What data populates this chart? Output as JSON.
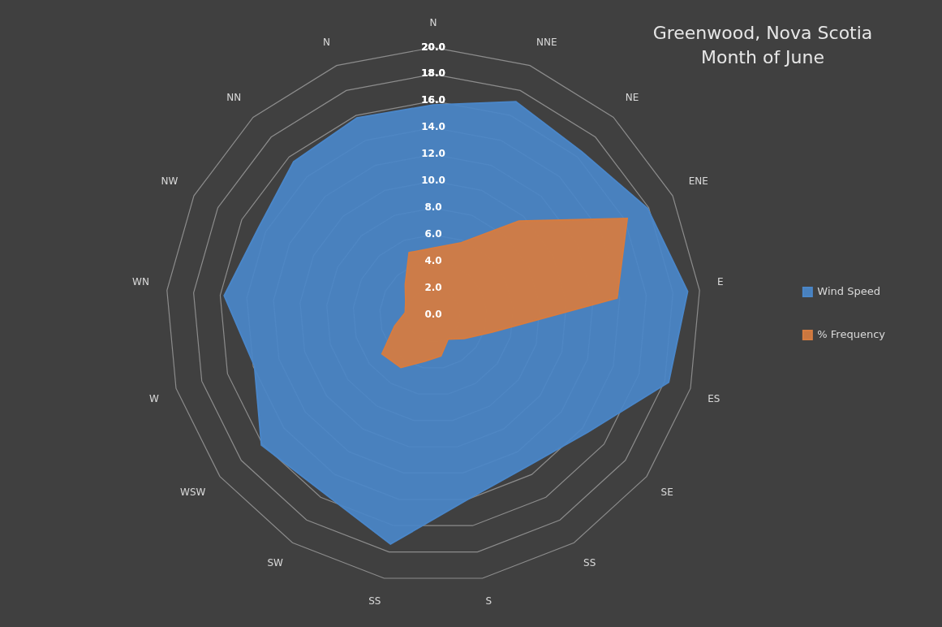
{
  "chart_data": {
    "type": "radar",
    "title": "Greenwood, Nova Scotia Month of June",
    "categories": [
      "N",
      "NNE",
      "NE",
      "ENE",
      "E",
      "ES",
      "SE",
      "SS",
      "S",
      "SS",
      "SW",
      "WSW",
      "W",
      "WN",
      "NW",
      "NN",
      "N"
    ],
    "series": [
      {
        "name": "Wind Speed",
        "color": "#4a86c8",
        "values": [
          15.7,
          17.1,
          16.5,
          17.9,
          19.1,
          18.3,
          14.5,
          13.3,
          14.0,
          17.4,
          15.6,
          16.1,
          13.9,
          15.7,
          14.6,
          15.5,
          15.8
        ]
      },
      {
        "name": "% Frequency",
        "color": "#d67c40",
        "values": [
          5.0,
          5.8,
          9.5,
          16.2,
          13.8,
          4.6,
          2.9,
          2.1,
          3.1,
          3.5,
          4.6,
          4.8,
          3.0,
          2.1,
          2.3,
          3.1,
          5.0
        ]
      }
    ],
    "ylim": [
      0,
      20
    ],
    "yticks": [
      {
        "value": 0,
        "label": "0.0"
      },
      {
        "value": 2,
        "label": "2.0"
      },
      {
        "value": 4,
        "label": "4.0"
      },
      {
        "value": 6,
        "label": "6.0"
      },
      {
        "value": 8,
        "label": "8.0"
      },
      {
        "value": 10,
        "label": "10.0"
      },
      {
        "value": 12,
        "label": "12.0"
      },
      {
        "value": 14,
        "label": "14.0"
      },
      {
        "value": 16,
        "label": "16.0"
      },
      {
        "value": 18,
        "label": "18.0"
      },
      {
        "value": 20,
        "label": "20.0"
      }
    ],
    "grid": true,
    "legend": "right",
    "marker": "none"
  }
}
